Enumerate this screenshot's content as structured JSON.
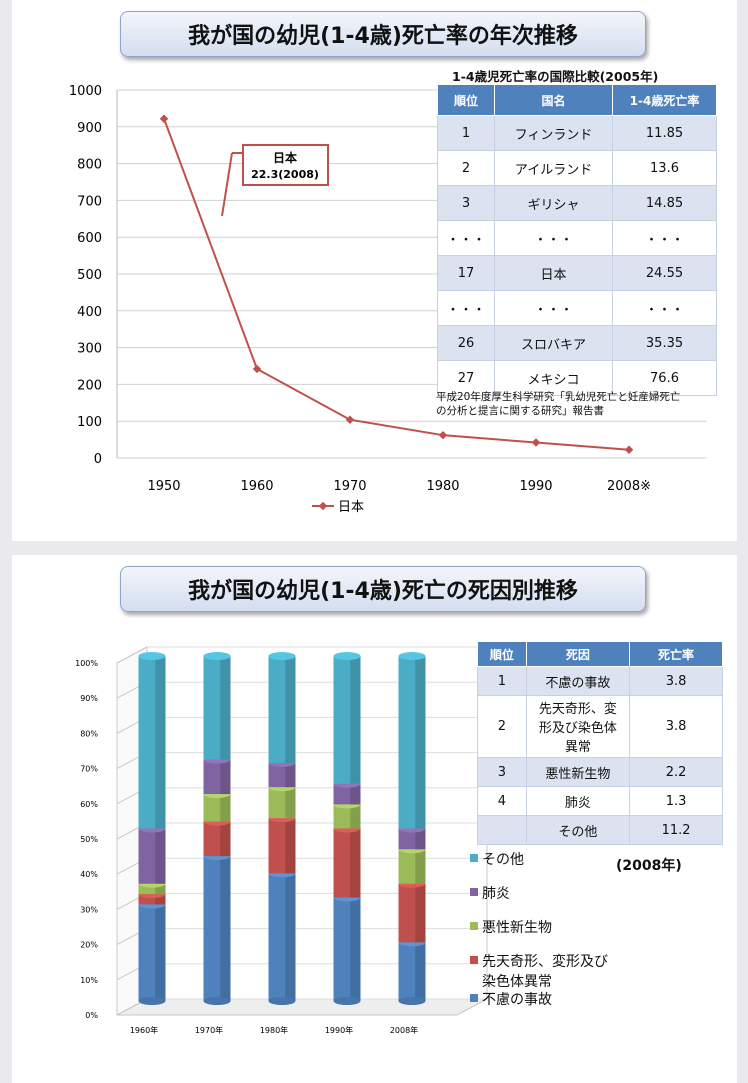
{
  "panel1": {
    "title": "我が国の幼児(1-4歳)死亡率の年次推移",
    "table_title": "1-4歳児死亡率の国際比較(2005年)",
    "table_headers": [
      "順位",
      "国名",
      "1-4歳死亡率"
    ],
    "table_rows": [
      [
        "1",
        "フィンランド",
        "11.85"
      ],
      [
        "2",
        "アイルランド",
        "13.6"
      ],
      [
        "3",
        "ギリシャ",
        "14.85"
      ],
      [
        "・・・",
        "・・・",
        "・・・"
      ],
      [
        "17",
        "日本",
        "24.55"
      ],
      [
        "・・・",
        "・・・",
        "・・・"
      ],
      [
        "26",
        "スロバキア",
        "35.35"
      ],
      [
        "27",
        "メキシコ",
        "76.6"
      ]
    ],
    "source_line1": "平成20年度厚生科学研究「乳幼児死亡と妊産婦死亡",
    "source_line2": "の分析と提言に関する研究」報告書",
    "callout_line1": "日本",
    "callout_line2": "22.3(2008)"
  },
  "panel2": {
    "title": "我が国の幼児(1-4歳)死亡の死因別推移",
    "table_headers": [
      "順位",
      "死因",
      "死亡率"
    ],
    "table_rows": [
      [
        "1",
        "不慮の事故",
        "3.8"
      ],
      [
        "2",
        "先天奇形、変形及び染色体異常",
        "3.8"
      ],
      [
        "3",
        "悪性新生物",
        "2.2"
      ],
      [
        "4",
        "肺炎",
        "1.3"
      ],
      [
        "",
        "その他",
        "11.2"
      ]
    ],
    "year_note": "(2008年)"
  },
  "chart_data": [
    {
      "type": "line",
      "categories": [
        "1950",
        "1960",
        "1970",
        "1980",
        "1990",
        "2008※"
      ],
      "series": [
        {
          "name": "日本",
          "values": [
            922,
            242,
            104,
            62,
            42,
            22.3
          ]
        }
      ],
      "ylim": [
        0,
        1000
      ],
      "yticks": [
        0,
        100,
        200,
        300,
        400,
        500,
        600,
        700,
        800,
        900,
        1000
      ],
      "grid": true,
      "legend": "bottom",
      "color": "#c0504d"
    },
    {
      "type": "bar",
      "stacked": true,
      "percent": true,
      "categories": [
        "1960年",
        "1970年",
        "1980年",
        "1990年",
        "2008年"
      ],
      "yticks": [
        "0%",
        "10%",
        "20%",
        "30%",
        "40%",
        "50%",
        "60%",
        "70%",
        "80%",
        "90%",
        "100%"
      ],
      "series": [
        {
          "name": "不慮の事故",
          "color": "#4f81bd",
          "values": [
            28,
            42,
            37,
            30,
            17
          ]
        },
        {
          "name": "先天奇形、変形及び染色体異常",
          "color": "#c0504d",
          "values": [
            3,
            10,
            16,
            20,
            17
          ]
        },
        {
          "name": "悪性新生物",
          "color": "#9bbb59",
          "values": [
            3,
            8,
            9,
            7,
            10
          ]
        },
        {
          "name": "肺炎",
          "color": "#8064a2",
          "values": [
            16,
            10,
            7,
            6,
            6
          ]
        },
        {
          "name": "その他",
          "color": "#4bacc6",
          "values": [
            50,
            30,
            31,
            37,
            50
          ]
        }
      ],
      "legend": "right"
    }
  ]
}
